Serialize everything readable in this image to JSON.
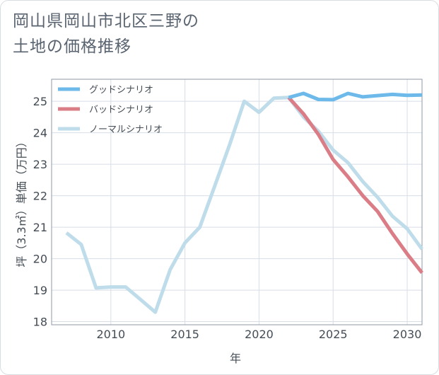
{
  "title": "岡山県岡山市北区三野の\n土地の価格推移",
  "chart_data": {
    "type": "line",
    "xlabel": "年",
    "ylabel": "坪（3.3㎡）単価（万円）",
    "xlim": [
      2006,
      2031
    ],
    "ylim": [
      17.9,
      25.7
    ],
    "xticks": [
      2010,
      2015,
      2020,
      2025,
      2030
    ],
    "yticks": [
      18,
      19,
      20,
      21,
      22,
      23,
      24,
      25
    ],
    "grid": true,
    "legend_position": "top-left",
    "series": [
      {
        "name": "グッドシナリオ",
        "color": "#6cb9ea",
        "x": [
          2022,
          2023,
          2024,
          2025,
          2026,
          2027,
          2028,
          2029,
          2030,
          2031
        ],
        "values": [
          25.12,
          25.25,
          25.06,
          25.05,
          25.25,
          25.14,
          25.18,
          25.22,
          25.19,
          25.2
        ]
      },
      {
        "name": "バッドシナリオ",
        "color": "#da7d86",
        "x": [
          2022,
          2023,
          2024,
          2025,
          2026,
          2027,
          2028,
          2029,
          2030,
          2031
        ],
        "values": [
          25.12,
          24.6,
          23.95,
          23.15,
          22.6,
          22.0,
          21.5,
          20.8,
          20.15,
          19.55
        ]
      },
      {
        "name": "ノーマルシナリオ",
        "color": "#bfdcea",
        "x": [
          2007,
          2008,
          2009,
          2010,
          2011,
          2012,
          2013,
          2014,
          2015,
          2016,
          2017,
          2018,
          2019,
          2020,
          2021,
          2022,
          2023,
          2024,
          2025,
          2026,
          2027,
          2028,
          2029,
          2030,
          2031
        ],
        "values": [
          20.82,
          20.45,
          19.07,
          19.1,
          19.1,
          18.7,
          18.3,
          19.65,
          20.5,
          21.0,
          22.3,
          23.6,
          25.0,
          24.65,
          25.1,
          25.12,
          24.5,
          24.05,
          23.45,
          23.05,
          22.45,
          21.95,
          21.35,
          20.95,
          20.3
        ]
      }
    ]
  }
}
